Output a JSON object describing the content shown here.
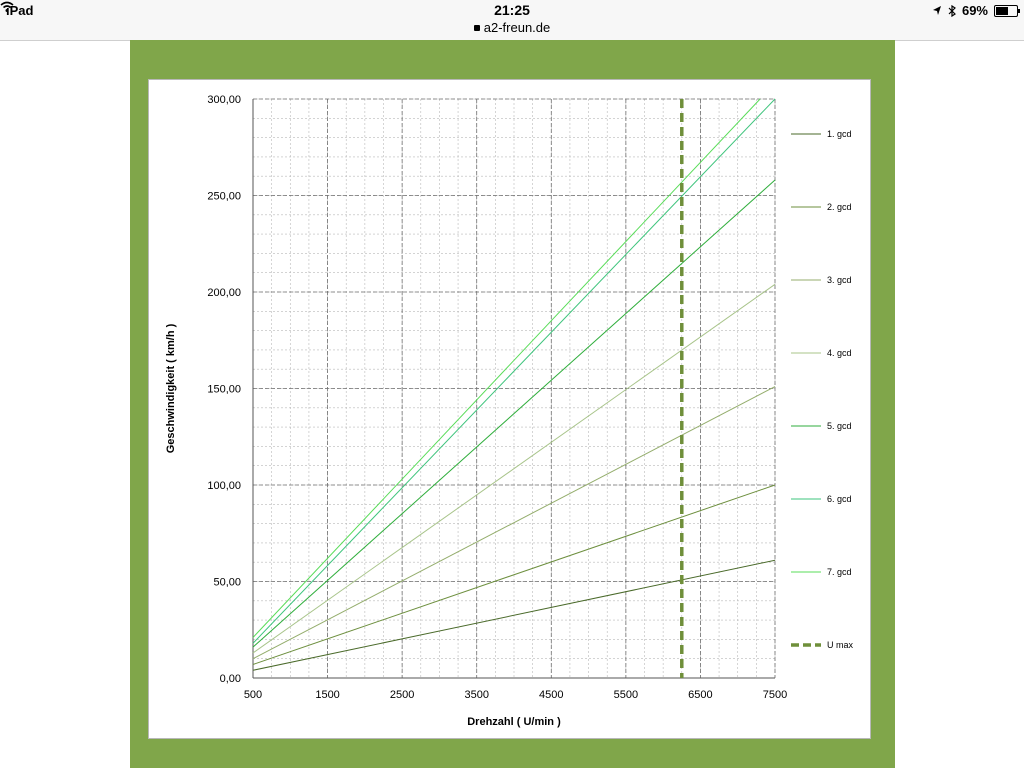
{
  "status_bar": {
    "device": "iPad",
    "time": "21:25",
    "url": "a2-freun.de",
    "battery": "69%",
    "battery_level": 0.69
  },
  "colors": {
    "frame": "#80a64a",
    "umax": "#6f8f3a"
  },
  "chart_data": {
    "type": "line",
    "xlabel": "Drehzahl ( U/min )",
    "ylabel": "Geschwindigkeit  ( km/h )",
    "xlim": [
      500,
      7500
    ],
    "ylim": [
      0,
      300
    ],
    "x_ticks": [
      "500",
      "1500",
      "2500",
      "3500",
      "4500",
      "5500",
      "6500",
      "7500"
    ],
    "y_ticks": [
      "0,00",
      "50,00",
      "100,00",
      "150,00",
      "200,00",
      "250,00",
      "300,00"
    ],
    "grid": true,
    "legend_position": "right",
    "series": [
      {
        "name": "1. gcd",
        "color": "#4a6a2a",
        "x": [
          500,
          7500
        ],
        "y": [
          4,
          61
        ]
      },
      {
        "name": "2. gcd",
        "color": "#6d8f3e",
        "x": [
          500,
          7500
        ],
        "y": [
          7,
          100
        ]
      },
      {
        "name": "3. gcd",
        "color": "#94ad6c",
        "x": [
          500,
          7500
        ],
        "y": [
          10,
          151
        ]
      },
      {
        "name": "4. gcd",
        "color": "#a8c48a",
        "x": [
          500,
          7500
        ],
        "y": [
          13,
          204
        ]
      },
      {
        "name": "5. gcd",
        "color": "#2fae3c",
        "x": [
          500,
          7500
        ],
        "y": [
          16,
          258
        ]
      },
      {
        "name": "6. gcd",
        "color": "#3ec47c",
        "x": [
          500,
          7500
        ],
        "y": [
          18,
          300
        ]
      },
      {
        "name": "7. gcd",
        "color": "#58dc58",
        "x": [
          500,
          7300
        ],
        "y": [
          21,
          300
        ]
      }
    ],
    "reference_lines": [
      {
        "name": "U max",
        "color": "#6f8f3a",
        "style": "dashed",
        "x": 6250
      }
    ]
  }
}
